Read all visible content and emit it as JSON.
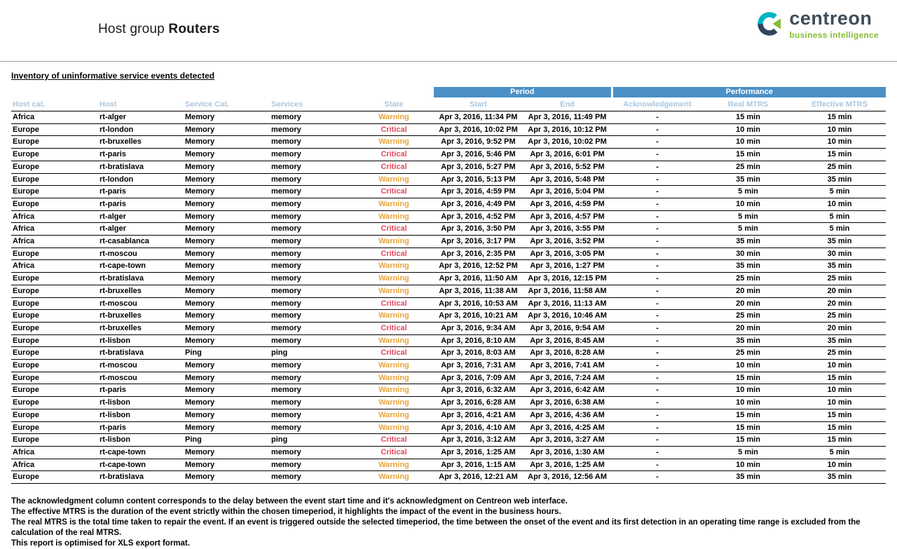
{
  "header": {
    "title_prefix": "Host group ",
    "title_group": "Routers",
    "logo": {
      "name": "centreon",
      "tagline": "business intelligence"
    }
  },
  "section_title": "Inventory of uninformative service events detected",
  "colors": {
    "warning": "#e8a33d",
    "critical": "#e2495b",
    "group_header_blue": "#4b90c6",
    "column_header_blue": "#abc7e0",
    "logo_green": "#84bd32",
    "logo_dark": "#3f4e5a",
    "logo_teal": "#00b5c0"
  },
  "table": {
    "group_headers": {
      "period": "Period",
      "performance": "Performance"
    },
    "columns": [
      "Host cat.",
      "Host",
      "Service Cat.",
      "Services",
      "State",
      "Start",
      "End",
      "Acknowledgement",
      "Real MTRS",
      "Effective MTRS"
    ],
    "column_keys": [
      "host-cat",
      "host",
      "service-cat",
      "services",
      "state",
      "start",
      "end",
      "acknowledgement",
      "real-mtrs",
      "effective-mtrs"
    ],
    "rows": [
      [
        "Africa",
        "rt-alger",
        "Memory",
        "memory",
        "Warning",
        "Apr 3, 2016, 11:34 PM",
        "Apr 3, 2016, 11:49 PM",
        "-",
        "15 min",
        "15 min"
      ],
      [
        "Europe",
        "rt-london",
        "Memory",
        "memory",
        "Critical",
        "Apr 3, 2016, 10:02 PM",
        "Apr 3, 2016, 10:12 PM",
        "-",
        "10 min",
        "10 min"
      ],
      [
        "Europe",
        "rt-bruxelles",
        "Memory",
        "memory",
        "Warning",
        "Apr 3, 2016, 9:52 PM",
        "Apr 3, 2016, 10:02 PM",
        "-",
        "10 min",
        "10 min"
      ],
      [
        "Europe",
        "rt-paris",
        "Memory",
        "memory",
        "Critical",
        "Apr 3, 2016, 5:46 PM",
        "Apr 3, 2016, 6:01 PM",
        "-",
        "15 min",
        "15 min"
      ],
      [
        "Europe",
        "rt-bratislava",
        "Memory",
        "memory",
        "Critical",
        "Apr 3, 2016, 5:27 PM",
        "Apr 3, 2016, 5:52 PM",
        "-",
        "25 min",
        "25 min"
      ],
      [
        "Europe",
        "rt-london",
        "Memory",
        "memory",
        "Warning",
        "Apr 3, 2016, 5:13 PM",
        "Apr 3, 2016, 5:48 PM",
        "-",
        "35 min",
        "35 min"
      ],
      [
        "Europe",
        "rt-paris",
        "Memory",
        "memory",
        "Critical",
        "Apr 3, 2016, 4:59 PM",
        "Apr 3, 2016, 5:04 PM",
        "-",
        "5 min",
        "5 min"
      ],
      [
        "Europe",
        "rt-paris",
        "Memory",
        "memory",
        "Warning",
        "Apr 3, 2016, 4:49 PM",
        "Apr 3, 2016, 4:59 PM",
        "-",
        "10 min",
        "10 min"
      ],
      [
        "Africa",
        "rt-alger",
        "Memory",
        "memory",
        "Warning",
        "Apr 3, 2016, 4:52 PM",
        "Apr 3, 2016, 4:57 PM",
        "-",
        "5 min",
        "5 min"
      ],
      [
        "Africa",
        "rt-alger",
        "Memory",
        "memory",
        "Critical",
        "Apr 3, 2016, 3:50 PM",
        "Apr 3, 2016, 3:55 PM",
        "-",
        "5 min",
        "5 min"
      ],
      [
        "Africa",
        "rt-casablanca",
        "Memory",
        "memory",
        "Warning",
        "Apr 3, 2016, 3:17 PM",
        "Apr 3, 2016, 3:52 PM",
        "-",
        "35 min",
        "35 min"
      ],
      [
        "Europe",
        "rt-moscou",
        "Memory",
        "memory",
        "Critical",
        "Apr 3, 2016, 2:35 PM",
        "Apr 3, 2016, 3:05 PM",
        "-",
        "30 min",
        "30 min"
      ],
      [
        "Africa",
        "rt-cape-town",
        "Memory",
        "memory",
        "Warning",
        "Apr 3, 2016, 12:52 PM",
        "Apr 3, 2016, 1:27 PM",
        "-",
        "35 min",
        "35 min"
      ],
      [
        "Europe",
        "rt-bratislava",
        "Memory",
        "memory",
        "Warning",
        "Apr 3, 2016, 11:50 AM",
        "Apr 3, 2016, 12:15 PM",
        "-",
        "25 min",
        "25 min"
      ],
      [
        "Europe",
        "rt-bruxelles",
        "Memory",
        "memory",
        "Warning",
        "Apr 3, 2016, 11:38 AM",
        "Apr 3, 2016, 11:58 AM",
        "-",
        "20 min",
        "20 min"
      ],
      [
        "Europe",
        "rt-moscou",
        "Memory",
        "memory",
        "Critical",
        "Apr 3, 2016, 10:53 AM",
        "Apr 3, 2016, 11:13 AM",
        "-",
        "20 min",
        "20 min"
      ],
      [
        "Europe",
        "rt-bruxelles",
        "Memory",
        "memory",
        "Warning",
        "Apr 3, 2016, 10:21 AM",
        "Apr 3, 2016, 10:46 AM",
        "-",
        "25 min",
        "25 min"
      ],
      [
        "Europe",
        "rt-bruxelles",
        "Memory",
        "memory",
        "Critical",
        "Apr 3, 2016, 9:34 AM",
        "Apr 3, 2016, 9:54 AM",
        "-",
        "20 min",
        "20 min"
      ],
      [
        "Europe",
        "rt-lisbon",
        "Memory",
        "memory",
        "Warning",
        "Apr 3, 2016, 8:10 AM",
        "Apr 3, 2016, 8:45 AM",
        "-",
        "35 min",
        "35 min"
      ],
      [
        "Europe",
        "rt-bratislava",
        "Ping",
        "ping",
        "Critical",
        "Apr 3, 2016, 8:03 AM",
        "Apr 3, 2016, 8:28 AM",
        "-",
        "25 min",
        "25 min"
      ],
      [
        "Europe",
        "rt-moscou",
        "Memory",
        "memory",
        "Warning",
        "Apr 3, 2016, 7:31 AM",
        "Apr 3, 2016, 7:41 AM",
        "-",
        "10 min",
        "10 min"
      ],
      [
        "Europe",
        "rt-moscou",
        "Memory",
        "memory",
        "Warning",
        "Apr 3, 2016, 7:09 AM",
        "Apr 3, 2016, 7:24 AM",
        "-",
        "15 min",
        "15 min"
      ],
      [
        "Europe",
        "rt-paris",
        "Memory",
        "memory",
        "Warning",
        "Apr 3, 2016, 6:32 AM",
        "Apr 3, 2016, 6:42 AM",
        "-",
        "10 min",
        "10 min"
      ],
      [
        "Europe",
        "rt-lisbon",
        "Memory",
        "memory",
        "Warning",
        "Apr 3, 2016, 6:28 AM",
        "Apr 3, 2016, 6:38 AM",
        "-",
        "10 min",
        "10 min"
      ],
      [
        "Europe",
        "rt-lisbon",
        "Memory",
        "memory",
        "Warning",
        "Apr 3, 2016, 4:21 AM",
        "Apr 3, 2016, 4:36 AM",
        "-",
        "15 min",
        "15 min"
      ],
      [
        "Europe",
        "rt-paris",
        "Memory",
        "memory",
        "Warning",
        "Apr 3, 2016, 4:10 AM",
        "Apr 3, 2016, 4:25 AM",
        "-",
        "15 min",
        "15 min"
      ],
      [
        "Europe",
        "rt-lisbon",
        "Ping",
        "ping",
        "Critical",
        "Apr 3, 2016, 3:12 AM",
        "Apr 3, 2016, 3:27 AM",
        "-",
        "15 min",
        "15 min"
      ],
      [
        "Africa",
        "rt-cape-town",
        "Memory",
        "memory",
        "Critical",
        "Apr 3, 2016, 1:25 AM",
        "Apr 3, 2016, 1:30 AM",
        "-",
        "5 min",
        "5 min"
      ],
      [
        "Africa",
        "rt-cape-town",
        "Memory",
        "memory",
        "Warning",
        "Apr 3, 2016, 1:15 AM",
        "Apr 3, 2016, 1:25 AM",
        "-",
        "10 min",
        "10 min"
      ],
      [
        "Europe",
        "rt-bratislava",
        "Memory",
        "memory",
        "Warning",
        "Apr 3, 2016, 12:21 AM",
        "Apr 3, 2016, 12:56 AM",
        "-",
        "35 min",
        "35 min"
      ]
    ]
  },
  "footer_notes": [
    "The acknowledgment column content corresponds to the delay between the event start time and it's acknowledgment on Centreon web interface.",
    "The effective MTRS is the duration of the event strictly within the chosen timeperiod, it highlights the impact of the event in the business hours.",
    "The real MTRS is the total time taken to repair the event. If an event is triggered outside the selected timeperiod, the time between the onset of the event and its first detection in an operating time range is excluded from the calculation of the real MTRS.",
    "This report is optimised for XLS export format."
  ]
}
